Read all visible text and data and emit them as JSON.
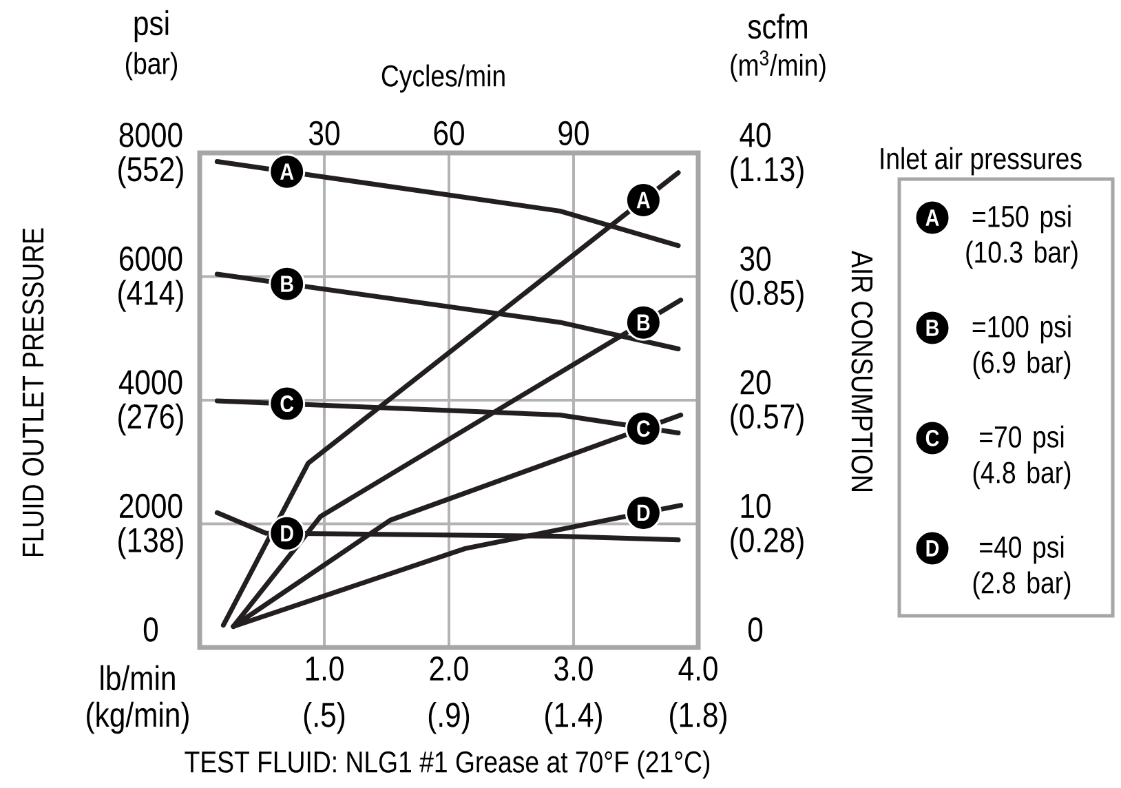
{
  "chart_data": {
    "type": "line",
    "ylabel": "FLUID OUTLET PRESSURE",
    "y2label": "AIR CONSUMPTION",
    "x2label": "Cycles/min",
    "xlabel": "lb/min",
    "y3label": "(bar)",
    "legend_title": "Inlet air pressures",
    "legend": "right",
    "grid": true,
    "xlim": [
      0,
      4
    ],
    "xticks": [
      {
        "value": 1,
        "label": "1.0"
      },
      {
        "value": 2,
        "label": "2.0"
      },
      {
        "value": 3,
        "label": "3.0"
      },
      {
        "value": 4,
        "label": "4.0"
      }
    ],
    "x2lim": [
      0,
      120
    ],
    "x2ticks": [
      30,
      60,
      90
    ],
    "ylim": [
      0,
      8000
    ],
    "yticks": [
      0,
      2000,
      4000,
      6000,
      8000
    ],
    "y3lim": [
      0,
      552
    ],
    "y3ticks": [
      {
        "value": 138,
        "label": "(138)"
      },
      {
        "value": 276,
        "label": "(276)"
      },
      {
        "value": 414,
        "label": "(414)"
      },
      {
        "value": 552,
        "label": "(552)"
      }
    ],
    "y2lim": [
      0,
      40
    ],
    "y2ticks": [
      0,
      10,
      20,
      30,
      40
    ],
    "series": [
      {
        "name": "A",
        "color": "#231f20",
        "x": [
          0.14,
          2.89,
          3.84
        ],
        "values": [
          7860,
          7060,
          6500
        ]
      },
      {
        "name": "B",
        "color": "#231f20",
        "x": [
          0.14,
          2.89,
          3.84
        ],
        "values": [
          6040,
          5260,
          4830
        ]
      },
      {
        "name": "C",
        "color": "#231f20",
        "x": [
          0.14,
          2.89,
          3.84
        ],
        "values": [
          3990,
          3760,
          3470
        ]
      },
      {
        "name": "D",
        "color": "#231f20",
        "x": [
          0.14,
          0.53,
          2.89,
          3.84
        ],
        "values": [
          2180,
          1850,
          1800,
          1740
        ]
      },
      {
        "name": "A",
        "color": "#231f20",
        "axis": "y2",
        "x": [
          0.19,
          0.87,
          3.84
        ],
        "values": [
          1.8,
          14.9,
          38.4
        ]
      },
      {
        "name": "B",
        "color": "#231f20",
        "axis": "y2",
        "x": [
          0.27,
          0.97,
          3.86
        ],
        "values": [
          1.7,
          10.6,
          28.1
        ]
      },
      {
        "name": "C",
        "color": "#231f20",
        "axis": "y2",
        "x": [
          0.27,
          1.53,
          3.86
        ],
        "values": [
          1.7,
          10.3,
          18.8
        ]
      },
      {
        "name": "D",
        "color": "#231f20",
        "axis": "y2",
        "x": [
          0.27,
          2.13,
          3.86
        ],
        "values": [
          1.7,
          8.0,
          11.5
        ]
      }
    ],
    "annotations": [
      "=150 psi (10.3 bar)",
      "=100 psi (6.9 bar)",
      "=70 psi (4.8 bar)",
      "=40 psi (2.8 bar)",
      "psi",
      "scfm",
      "TEST FLUID: NLG1 #1 Grease at 70°F (21°C)",
      "(m$^{3}$/min)",
      "(kg/min)",
      "(0.28)",
      "(0.57)",
      "(0.85)",
      "(1.13)",
      "(.5)",
      "(.9)",
      "(1.4)",
      "(1.8)"
    ]
  }
}
